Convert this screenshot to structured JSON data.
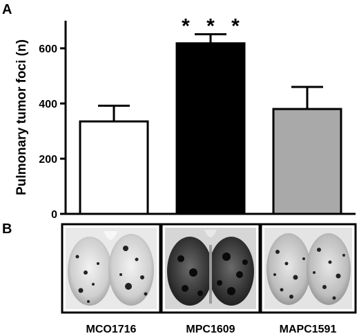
{
  "panel_a_label": "A",
  "panel_b_label": "B",
  "chart_data": {
    "type": "bar",
    "title": "",
    "xlabel": "",
    "ylabel": "Pulmonary tumor foci (n)",
    "ylim": [
      0,
      700
    ],
    "yticks": [
      0,
      200,
      400,
      600
    ],
    "categories": [
      "MCO1716",
      "MPC1609",
      "MAPC1591"
    ],
    "values": [
      335,
      618,
      380
    ],
    "errors": [
      57,
      33,
      80
    ],
    "bar_colors": [
      "#ffffff",
      "#000000",
      "#a9a9a9"
    ],
    "significance": [
      "",
      "***",
      ""
    ]
  },
  "panel_b": {
    "photos": [
      {
        "caption": "MCO1716",
        "depiction": "lungs-light-with-scattered-foci"
      },
      {
        "caption": "MPC1609",
        "depiction": "lungs-dark-dense-foci"
      },
      {
        "caption": "MAPC1591",
        "depiction": "lungs-light-with-many-foci"
      }
    ]
  }
}
